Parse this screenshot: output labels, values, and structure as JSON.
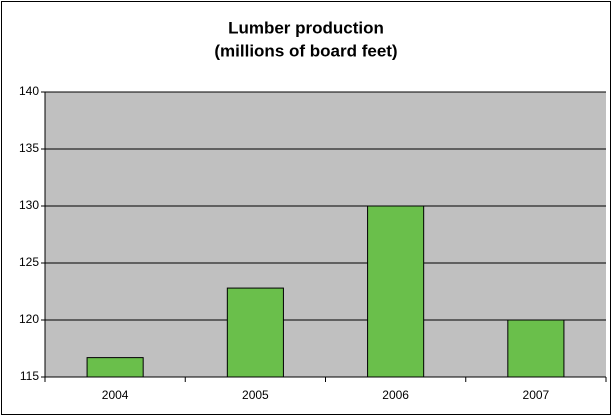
{
  "chart_data": {
    "type": "bar",
    "title": [
      "Lumber production",
      "(millions of board feet)"
    ],
    "categories": [
      "2004",
      "2005",
      "2006",
      "2007"
    ],
    "values": [
      116.7,
      122.8,
      130,
      120
    ],
    "color": "#6abf4b",
    "ylim": [
      115,
      140
    ],
    "yticks": [
      115,
      120,
      125,
      130,
      135,
      140
    ],
    "grid": true
  }
}
